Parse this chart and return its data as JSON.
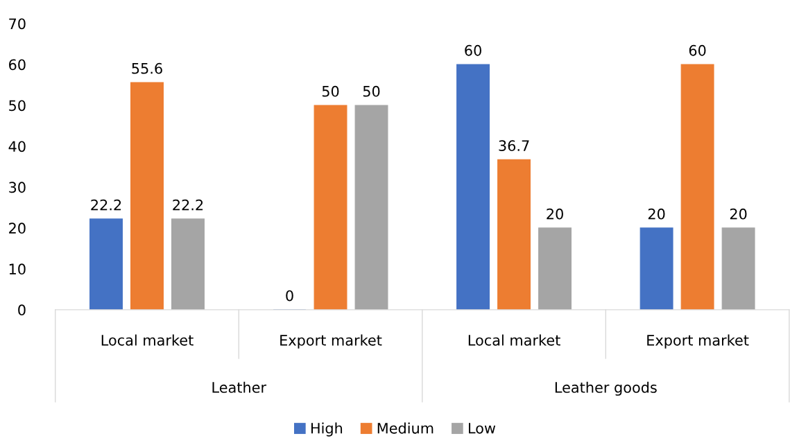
{
  "chart_data": {
    "type": "bar",
    "categories": [
      "Local market",
      "Export market",
      "Local market",
      "Export market"
    ],
    "series": [
      {
        "name": "High",
        "color": "#4472c4",
        "values": [
          22.2,
          0,
          60,
          20
        ]
      },
      {
        "name": "Medium",
        "color": "#ed7d31",
        "values": [
          55.6,
          50,
          36.7,
          60
        ]
      },
      {
        "name": "Low",
        "color": "#a5a5a5",
        "values": [
          22.2,
          50,
          20,
          20
        ]
      }
    ],
    "annotations": [
      "Leather",
      "Leather goods"
    ],
    "ylim": [
      0,
      70
    ],
    "yticks": [
      0,
      10,
      20,
      30,
      40,
      50,
      60,
      70
    ],
    "data_labels": true,
    "grid": false,
    "legend": "bottom"
  }
}
